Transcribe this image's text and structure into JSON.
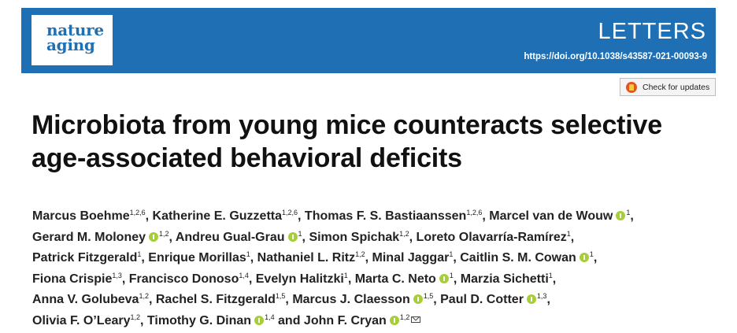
{
  "journal": {
    "logo_line1": "nature",
    "logo_line2": "aging",
    "section": "LETTERS",
    "doi": "https://doi.org/10.1038/s43587-021-00093-9",
    "brand_color": "#1f6fb5"
  },
  "check_updates": {
    "label": "Check for updates",
    "icon": "crossmark-icon"
  },
  "article": {
    "title_line1": "Microbiota from young mice counteracts selective",
    "title_line2": "age-associated behavioral deficits"
  },
  "authors": [
    {
      "name": "Marcus Boehme",
      "sup": "1,2,6",
      "orcid": false,
      "sep": ", "
    },
    {
      "name": "Katherine E. Guzzetta",
      "sup": "1,2,6",
      "orcid": false,
      "sep": ", "
    },
    {
      "name": "Thomas F. S. Bastiaanssen",
      "sup": "1,2,6",
      "orcid": false,
      "sep": ", "
    },
    {
      "name": "Marcel van de Wouw",
      "sup": "1",
      "orcid": true,
      "sep": ","
    },
    {
      "name": "Gerard M. Moloney",
      "sup": "1,2",
      "orcid": true,
      "sep": ", "
    },
    {
      "name": "Andreu Gual-Grau",
      "sup": "1",
      "orcid": true,
      "sep": ", "
    },
    {
      "name": "Simon Spichak",
      "sup": "1,2",
      "orcid": false,
      "sep": ", "
    },
    {
      "name": "Loreto Olavarría-Ramírez",
      "sup": "1",
      "orcid": false,
      "sep": ","
    },
    {
      "name": "Patrick Fitzgerald",
      "sup": "1",
      "orcid": false,
      "sep": ", "
    },
    {
      "name": "Enrique Morillas",
      "sup": "1",
      "orcid": false,
      "sep": ", "
    },
    {
      "name": "Nathaniel L. Ritz",
      "sup": "1,2",
      "orcid": false,
      "sep": ", "
    },
    {
      "name": "Minal Jaggar",
      "sup": "1",
      "orcid": false,
      "sep": ", "
    },
    {
      "name": "Caitlin S. M. Cowan",
      "sup": "1",
      "orcid": true,
      "sep": ","
    },
    {
      "name": "Fiona Crispie",
      "sup": "1,3",
      "orcid": false,
      "sep": ", "
    },
    {
      "name": "Francisco Donoso",
      "sup": "1,4",
      "orcid": false,
      "sep": ", "
    },
    {
      "name": "Evelyn Halitzki",
      "sup": "1",
      "orcid": false,
      "sep": ", "
    },
    {
      "name": "Marta C. Neto",
      "sup": "1",
      "orcid": true,
      "sep": ", "
    },
    {
      "name": "Marzia Sichetti",
      "sup": "1",
      "orcid": false,
      "sep": ","
    },
    {
      "name": "Anna V. Golubeva",
      "sup": "1,2",
      "orcid": false,
      "sep": ", "
    },
    {
      "name": "Rachel S. Fitzgerald",
      "sup": "1,5",
      "orcid": false,
      "sep": ", "
    },
    {
      "name": "Marcus J. Claesson",
      "sup": "1,5",
      "orcid": true,
      "sep": ", "
    },
    {
      "name": "Paul D. Cotter",
      "sup": "1,3",
      "orcid": true,
      "sep": ","
    },
    {
      "name": "Olivia F. O’Leary",
      "sup": "1,2",
      "orcid": false,
      "sep": ", "
    },
    {
      "name": "Timothy G. Dinan",
      "sup": "1,4",
      "orcid": true,
      "sep": " and "
    },
    {
      "name": "John F. Cryan",
      "sup": "1,2",
      "orcid": true,
      "sep": "",
      "mail": true
    }
  ],
  "author_lines": [
    [
      0,
      1,
      2,
      3
    ],
    [
      4,
      5,
      6,
      7
    ],
    [
      8,
      9,
      10,
      11,
      12
    ],
    [
      13,
      14,
      15,
      16,
      17
    ],
    [
      18,
      19,
      20,
      21
    ],
    [
      22,
      23,
      24
    ]
  ]
}
